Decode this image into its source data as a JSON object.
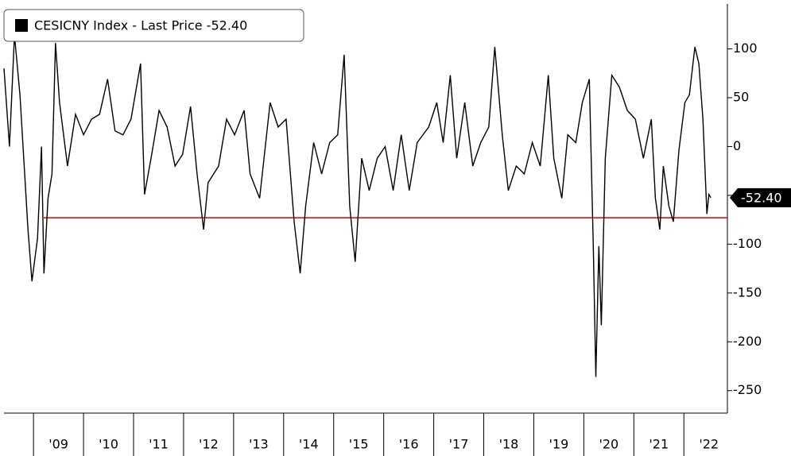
{
  "chart_data": {
    "type": "line",
    "series": [
      {
        "name": "CESICNY Index - Last Price -52.40",
        "color": "#000000",
        "values": [
          80,
          0,
          114,
          53,
          -85,
          -138,
          -94,
          0,
          -130,
          -53,
          -28,
          106,
          45,
          -20,
          33,
          12,
          28,
          33,
          69,
          16,
          12,
          28,
          85,
          -49,
          -12,
          37,
          20,
          -20,
          -8,
          41,
          -28,
          -85,
          -37,
          -20,
          28,
          12,
          37,
          -28,
          -53,
          45,
          20,
          28,
          -77,
          -130,
          -61,
          4,
          -28,
          4,
          12,
          94,
          -61,
          -118,
          -12,
          -45,
          -12,
          0,
          -45,
          12,
          -45,
          4,
          20,
          45,
          4,
          73,
          -12,
          45,
          -20,
          4,
          20,
          102,
          12,
          -45,
          -20,
          -28,
          4,
          -20,
          73,
          -12,
          -53,
          12,
          4,
          45,
          69,
          -102,
          -236,
          -102,
          -183,
          -12,
          73,
          61,
          37,
          28,
          -12,
          28,
          -53,
          -85,
          -20,
          -61,
          -77,
          -4,
          45,
          53,
          102,
          85,
          28,
          -69,
          -49,
          -52.4
        ]
      }
    ],
    "x": [
      2008.41,
      2008.52,
      2008.62,
      2008.73,
      2008.89,
      2008.97,
      2009.08,
      2009.16,
      2009.21,
      2009.29,
      2009.37,
      2009.44,
      2009.52,
      2009.68,
      2009.84,
      2010.0,
      2010.16,
      2010.32,
      2010.48,
      2010.63,
      2010.79,
      2010.95,
      2011.14,
      2011.22,
      2011.35,
      2011.51,
      2011.67,
      2011.83,
      2011.98,
      2012.14,
      2012.27,
      2012.4,
      2012.49,
      2012.7,
      2012.86,
      2013.02,
      2013.21,
      2013.33,
      2013.52,
      2013.73,
      2013.89,
      2014.05,
      2014.21,
      2014.33,
      2014.44,
      2014.6,
      2014.76,
      2014.92,
      2015.08,
      2015.21,
      2015.32,
      2015.43,
      2015.56,
      2015.71,
      2015.87,
      2016.03,
      2016.19,
      2016.35,
      2016.51,
      2016.67,
      2016.9,
      2017.06,
      2017.19,
      2017.33,
      2017.46,
      2017.62,
      2017.78,
      2017.94,
      2018.1,
      2018.22,
      2018.37,
      2018.49,
      2018.65,
      2018.81,
      2018.97,
      2019.13,
      2019.29,
      2019.4,
      2019.56,
      2019.68,
      2019.84,
      2019.97,
      2020.11,
      2020.19,
      2020.24,
      2020.3,
      2020.35,
      2020.43,
      2020.56,
      2020.71,
      2020.87,
      2021.03,
      2021.19,
      2021.35,
      2021.43,
      2021.52,
      2021.59,
      2021.7,
      2021.79,
      2021.9,
      2022.02,
      2022.11,
      2022.22,
      2022.3,
      2022.38,
      2022.46,
      2022.5,
      2022.54
    ],
    "xlim": [
      2008.41,
      2022.87
    ],
    "xticks": [
      {
        "value": 2009,
        "label": "'09"
      },
      {
        "value": 2010,
        "label": "'10"
      },
      {
        "value": 2011,
        "label": "'11"
      },
      {
        "value": 2012,
        "label": "'12"
      },
      {
        "value": 2013,
        "label": "'13"
      },
      {
        "value": 2014,
        "label": "'14"
      },
      {
        "value": 2015,
        "label": "'15"
      },
      {
        "value": 2016,
        "label": "'16"
      },
      {
        "value": 2017,
        "label": "'17"
      },
      {
        "value": 2018,
        "label": "'18"
      },
      {
        "value": 2019,
        "label": "'19"
      },
      {
        "value": 2020,
        "label": "'20"
      },
      {
        "value": 2021,
        "label": "'21"
      },
      {
        "value": 2022,
        "label": "'22"
      }
    ],
    "ylim": [
      -273,
      146
    ],
    "yticks": [
      100,
      50,
      0,
      -50,
      -100,
      -150,
      -200,
      -250
    ],
    "hline": {
      "value": -73,
      "color": "#d00000"
    },
    "last_value_label": "-52.40"
  }
}
